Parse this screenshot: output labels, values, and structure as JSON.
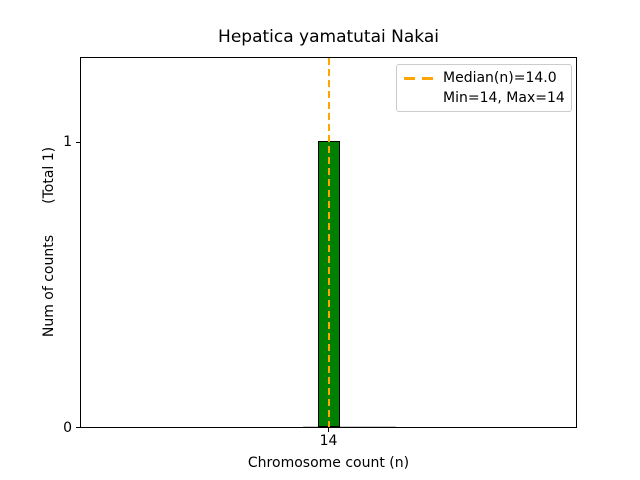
{
  "figure": {
    "title": "Hepatica yamatutai Nakai",
    "xlabel": "Chromosome count (n)",
    "ylabel": "Num of counts       (Total 1)",
    "xtick_14": "14",
    "ytick_1": "1",
    "ytick_0": "0",
    "legend": {
      "median_label": "Median(n)=14.0",
      "minmax_label": "Min=14, Max=14"
    },
    "colors": {
      "bar_fill": "#008000",
      "bar_edge": "#000000",
      "median_line": "#FFA500",
      "legend_border": "#cccccc",
      "axis": "#000000",
      "background": "#ffffff"
    }
  },
  "chart_data": {
    "type": "bar",
    "title": "Hepatica yamatutai Nakai",
    "xlabel": "Chromosome count (n)",
    "ylabel": "Num of counts (Total 1)",
    "categories": [
      14
    ],
    "values": [
      1
    ],
    "total_counts": 1,
    "median": 14.0,
    "min": 14,
    "max": 14,
    "xticks": [
      14
    ],
    "yticks": [
      0,
      1
    ],
    "ylim": [
      0,
      1.3
    ],
    "grid": false,
    "legend_entries": [
      "Median(n)=14.0",
      "Min=14, Max=14"
    ],
    "legend_position": "upper right",
    "bar_color": "#008000",
    "bar_edgecolor": "#000000",
    "median_line_color": "#FFA500",
    "median_line_style": "dashed"
  }
}
